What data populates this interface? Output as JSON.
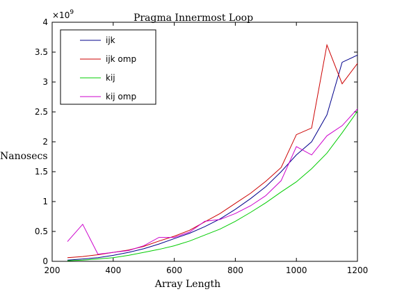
{
  "chart_data": {
    "type": "line",
    "title": "Pragma Innermost Loop",
    "xlabel": "Array Length",
    "ylabel": "Nanosecs",
    "exponent_label": "×10",
    "exponent_power": "9",
    "xlim": [
      200,
      1200
    ],
    "ylim": [
      0,
      4
    ],
    "xticks": [
      "200",
      "400",
      "600",
      "800",
      "1000",
      "1200"
    ],
    "yticks": [
      "0",
      "0.5",
      "1",
      "1.5",
      "2",
      "2.5",
      "3",
      "3.5",
      "4"
    ],
    "grid": false,
    "legend_position": "top-left",
    "x": [
      250,
      300,
      350,
      400,
      450,
      500,
      550,
      600,
      650,
      700,
      750,
      800,
      850,
      900,
      950,
      1000,
      1050,
      1100,
      1150,
      1200
    ],
    "series": [
      {
        "name": "ijk",
        "color": "#00008b",
        "values": [
          0.02,
          0.04,
          0.06,
          0.1,
          0.15,
          0.21,
          0.29,
          0.38,
          0.47,
          0.58,
          0.71,
          0.87,
          1.05,
          1.25,
          1.5,
          1.78,
          2.0,
          2.45,
          3.33,
          3.45
        ]
      },
      {
        "name": "ijk omp",
        "color": "#cc0000",
        "values": [
          0.06,
          0.08,
          0.11,
          0.15,
          0.19,
          0.25,
          0.34,
          0.42,
          0.52,
          0.66,
          0.8,
          0.97,
          1.14,
          1.34,
          1.57,
          2.12,
          2.23,
          3.62,
          2.97,
          3.31
        ]
      },
      {
        "name": "kij",
        "color": "#00cc00",
        "values": [
          0.01,
          0.02,
          0.04,
          0.06,
          0.1,
          0.15,
          0.2,
          0.26,
          0.34,
          0.44,
          0.54,
          0.67,
          0.82,
          0.98,
          1.16,
          1.33,
          1.55,
          1.81,
          2.15,
          2.51
        ]
      },
      {
        "name": "kij omp",
        "color": "#cc00cc",
        "values": [
          0.33,
          0.62,
          0.12,
          0.15,
          0.18,
          0.26,
          0.4,
          0.4,
          0.49,
          0.67,
          0.7,
          0.8,
          0.93,
          1.1,
          1.35,
          1.92,
          1.78,
          2.1,
          2.27,
          2.55
        ]
      }
    ]
  }
}
